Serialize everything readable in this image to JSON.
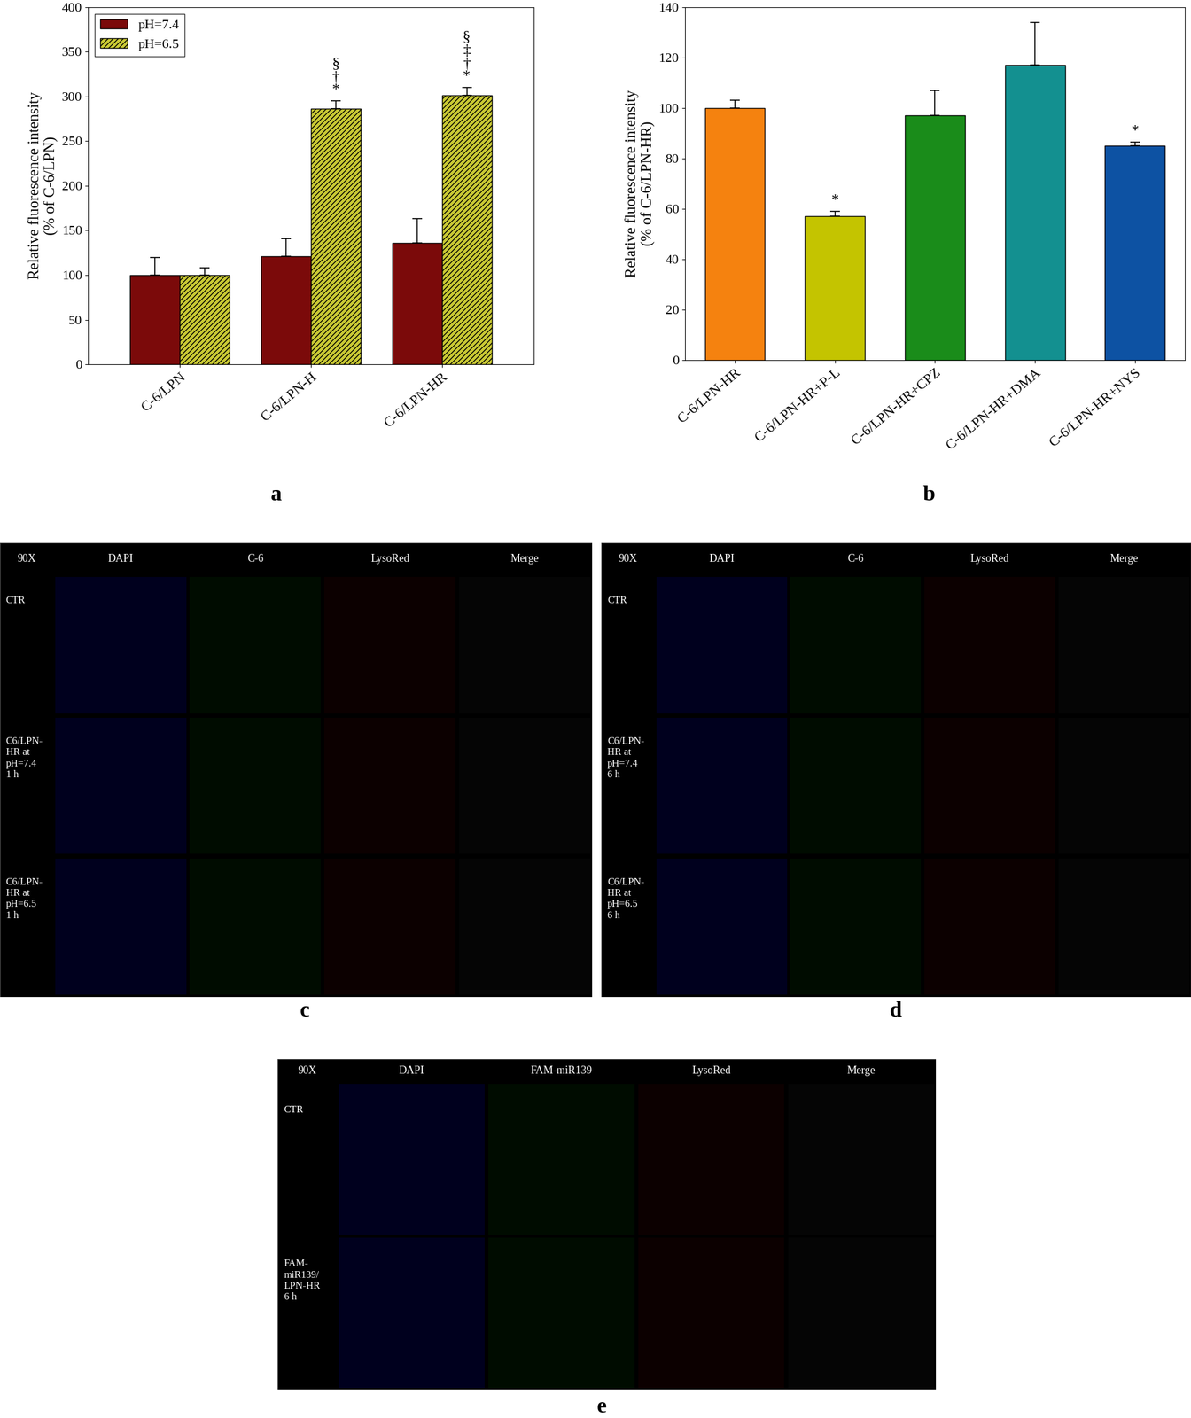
{
  "chart_data": [
    {
      "type": "bar",
      "label": "a",
      "y_label": "Relative fluorescence intensity\n(% of C-6/LPN)",
      "categories": [
        "C-6/LPN",
        "C-6/LPN-H",
        "C-6/LPN-HR"
      ],
      "series": [
        {
          "name": "pH=7.4",
          "color": "#7b0a0a",
          "values": [
            100,
            121,
            136
          ],
          "errors": [
            20,
            20,
            27
          ],
          "annotations": [
            null,
            null,
            null
          ]
        },
        {
          "name": "pH=6.5",
          "color": "#c9c934",
          "values": [
            100,
            286,
            301
          ],
          "errors": [
            8,
            9,
            9
          ],
          "annotations": [
            null,
            [
              "§",
              "†",
              "*"
            ],
            [
              "§",
              "‡",
              "†",
              "*"
            ]
          ]
        }
      ],
      "ylim": [
        0,
        400
      ],
      "yticks": [
        0,
        50,
        100,
        150,
        200,
        250,
        300,
        350,
        400
      ],
      "legend": "upper left"
    },
    {
      "type": "bar",
      "label": "b",
      "y_label": "Relative fluorescence intensity\n(% of C-6/LPN-HR)",
      "categories": [
        "C-6/LPN-HR",
        "C-6/LPN-HR+P-L",
        "C-6/LPN-HR+CPZ",
        "C-6/LPN-HR+DMA",
        "C-6/LPN-HR+NYS"
      ],
      "values": [
        100,
        57,
        97,
        117,
        85
      ],
      "errors": [
        3,
        2,
        10,
        17,
        1.5
      ],
      "colors": [
        "#f5820f",
        "#c4c400",
        "#1a8c1a",
        "#139090",
        "#0d52a3"
      ],
      "annotations": [
        null,
        [
          "*"
        ],
        null,
        null,
        [
          "*"
        ]
      ],
      "ylim": [
        0,
        140
      ],
      "yticks": [
        0,
        20,
        40,
        60,
        80,
        100,
        120,
        140
      ]
    }
  ],
  "image_panels": [
    {
      "label": "c",
      "corner": "90X",
      "columns": [
        "DAPI",
        "C-6",
        "LysoRed",
        "Merge"
      ],
      "rows": [
        "CTR",
        "C6/LPN-\nHR at\npH=7.4\n1 h",
        "C6/LPN-\nHR at\npH=6.5\n1 h"
      ]
    },
    {
      "label": "d",
      "corner": "90X",
      "columns": [
        "DAPI",
        "C-6",
        "LysoRed",
        "Merge"
      ],
      "rows": [
        "CTR",
        "C6/LPN-\nHR at\npH=7.4\n6 h",
        "C6/LPN-\nHR at\npH=6.5\n6 h"
      ]
    },
    {
      "label": "e",
      "corner": "90X",
      "columns": [
        "DAPI",
        "FAM-miR139",
        "LysoRed",
        "Merge"
      ],
      "rows": [
        "CTR",
        "FAM-\nmiR139/\nLPN-HR\n6 h"
      ]
    }
  ]
}
